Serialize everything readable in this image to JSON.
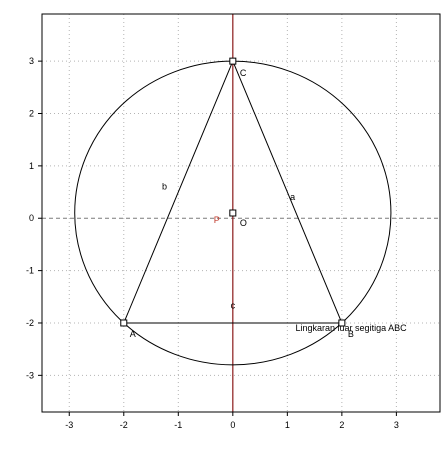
{
  "plot": {
    "xlim": [
      -3.5,
      3.8
    ],
    "ylim": [
      -3.7,
      3.9
    ],
    "x_ticks": [
      -3,
      -2,
      -1,
      0,
      1,
      2,
      3
    ],
    "y_ticks": [
      3,
      2,
      1,
      0,
      -1,
      -2,
      -3
    ],
    "x_tick_labels": [
      "-3",
      "-2",
      "-1",
      "0",
      "1",
      "2",
      "3"
    ],
    "y_tick_labels": [
      "3",
      "2",
      "1",
      "0",
      "-1",
      "-2",
      "-3"
    ],
    "grid": true
  },
  "geometry": {
    "points": {
      "A": {
        "x": -2,
        "y": -2,
        "label": "A"
      },
      "B": {
        "x": 2,
        "y": -2,
        "label": "B"
      },
      "C": {
        "x": 0,
        "y": 3,
        "label": "C"
      },
      "O": {
        "x": 0,
        "y": 0.1,
        "label": "O"
      },
      "P": {
        "label": "P"
      }
    },
    "circle_center": [
      0,
      0.1
    ],
    "circle_radius": 2.9,
    "side_labels": {
      "a": "a",
      "b": "b",
      "c": "c"
    },
    "caption": "Lingkaran luar segitiga ABC"
  },
  "colors": {
    "frame": "#000000",
    "grid": "#b4b4b4",
    "x_axis": "#7a7a7a",
    "y_axis": "#8b1a1a",
    "shape": "#000000",
    "p_label": "#c0392b",
    "caption": "#000000"
  }
}
